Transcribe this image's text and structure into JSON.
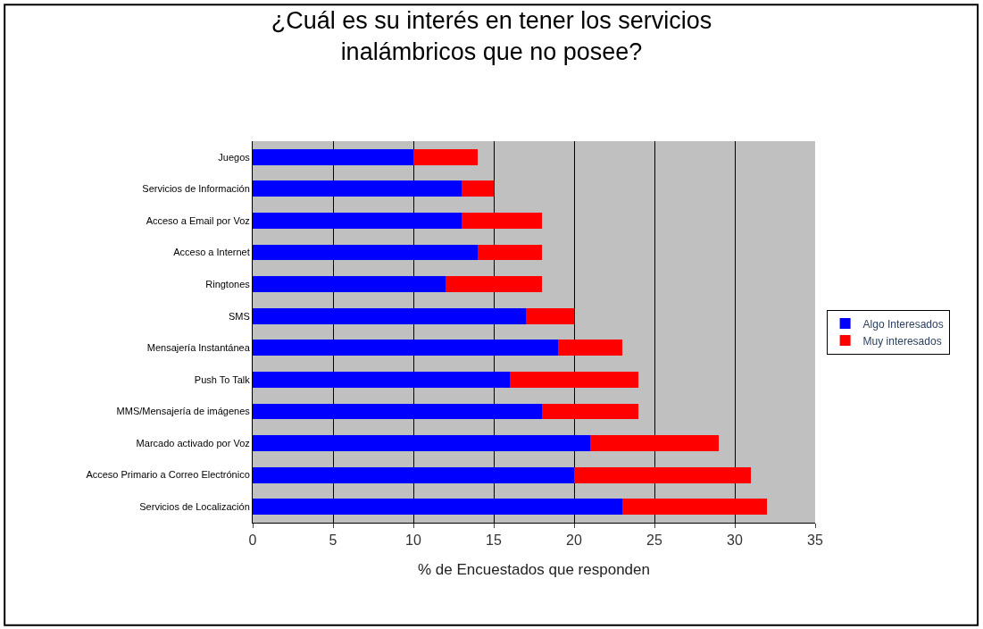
{
  "chart_data": {
    "type": "bar",
    "orientation": "horizontal",
    "stacked": true,
    "title": "¿Cuál es su interés en tener los servicios\ninalámbricos que no posee?",
    "xlabel": "% de Encuestados que responden",
    "categories": [
      "Juegos",
      "Servicios de Información",
      "Acceso a Email por Voz",
      "Acceso a Internet",
      "Ringtones",
      "SMS",
      "Mensajería Instantánea",
      "Push To Talk",
      "MMS/Mensajería de imágenes",
      "Marcado activado por Voz",
      "Acceso Primario a Correo Electrónico",
      "Servicios de Localización"
    ],
    "series": [
      {
        "name": "Algo Interesados",
        "color": "#0000ff",
        "values": [
          10,
          13,
          13,
          14,
          12,
          17,
          19,
          16,
          18,
          21,
          20,
          23
        ]
      },
      {
        "name": "Muy interesados",
        "color": "#ff0000",
        "values": [
          4,
          2,
          5,
          4,
          6,
          3,
          4,
          8,
          6,
          8,
          11,
          9
        ]
      }
    ],
    "xlim": [
      0,
      35
    ],
    "xticks": [
      0,
      5,
      10,
      15,
      20,
      25,
      30,
      35
    ],
    "grid": "x",
    "legend": "right"
  }
}
